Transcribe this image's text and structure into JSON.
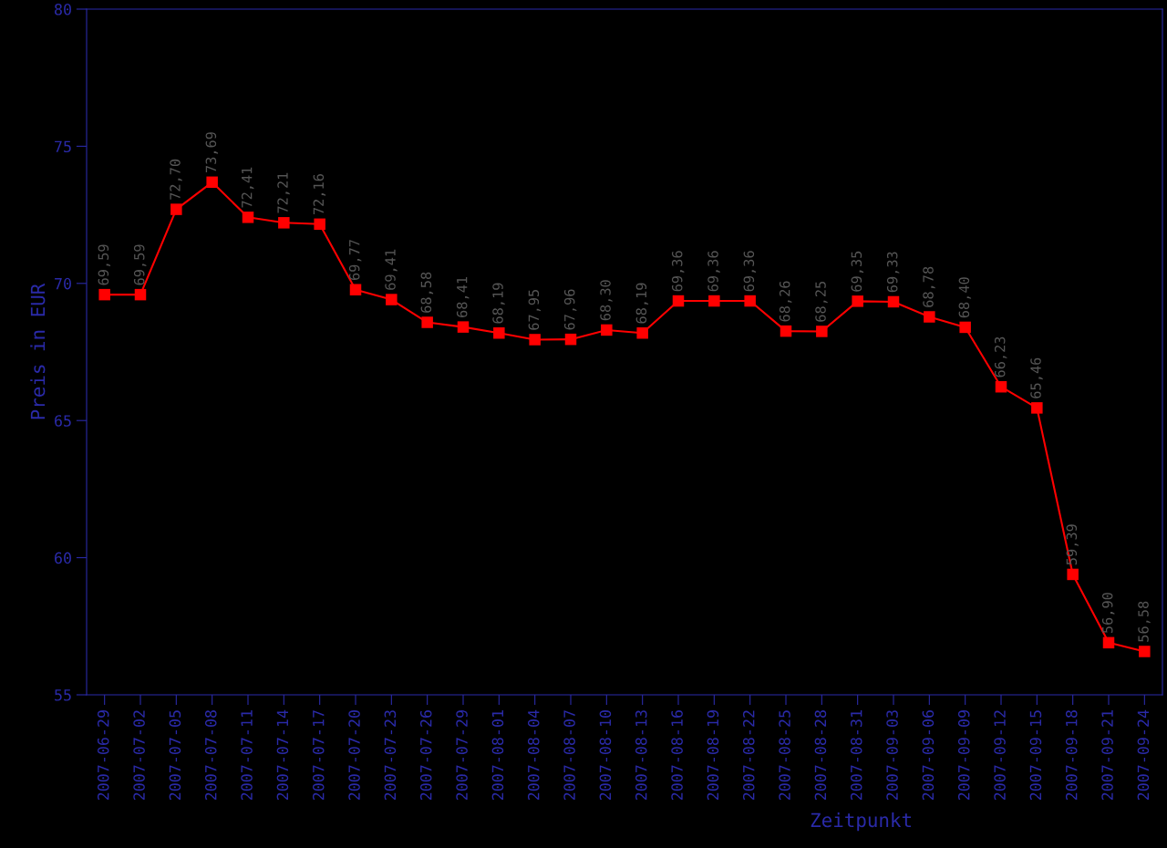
{
  "chart_data": {
    "type": "line",
    "xlabel": "Zeitpunkt",
    "ylabel": "Preis in EUR",
    "categories": [
      "2007-06-29",
      "2007-07-02",
      "2007-07-05",
      "2007-07-08",
      "2007-07-11",
      "2007-07-14",
      "2007-07-17",
      "2007-07-20",
      "2007-07-23",
      "2007-07-26",
      "2007-07-29",
      "2007-08-01",
      "2007-08-04",
      "2007-08-07",
      "2007-08-10",
      "2007-08-13",
      "2007-08-16",
      "2007-08-19",
      "2007-08-22",
      "2007-08-25",
      "2007-08-28",
      "2007-08-31",
      "2007-09-03",
      "2007-09-06",
      "2007-09-09",
      "2007-09-12",
      "2007-09-15",
      "2007-09-18",
      "2007-09-21",
      "2007-09-24"
    ],
    "series": [
      {
        "color": "#ff0000",
        "values": [
          69.59,
          69.59,
          72.7,
          73.69,
          72.41,
          72.21,
          72.16,
          69.77,
          69.41,
          68.58,
          68.41,
          68.19,
          67.95,
          67.96,
          68.3,
          68.19,
          69.36,
          69.36,
          69.36,
          68.26,
          68.25,
          69.35,
          69.33,
          68.78,
          68.4,
          66.23,
          65.46,
          59.39,
          56.9,
          56.58
        ],
        "value_labels": [
          "69,59",
          "69,59",
          "72,70",
          "73,69",
          "72,41",
          "72,21",
          "72,16",
          "69,77",
          "69,41",
          "68,58",
          "68,41",
          "68,19",
          "67,95",
          "67,96",
          "68,30",
          "68,19",
          "69,36",
          "69,36",
          "69,36",
          "68,26",
          "68,25",
          "69,35",
          "69,33",
          "68,78",
          "68,40",
          "66,23",
          "65,46",
          "59,39",
          "56,90",
          "56,58"
        ]
      }
    ],
    "ylim": [
      55,
      80
    ],
    "yticks": [
      55,
      60,
      65,
      70,
      75,
      80
    ],
    "marker": "square",
    "line_style": "solid",
    "grid": false
  }
}
